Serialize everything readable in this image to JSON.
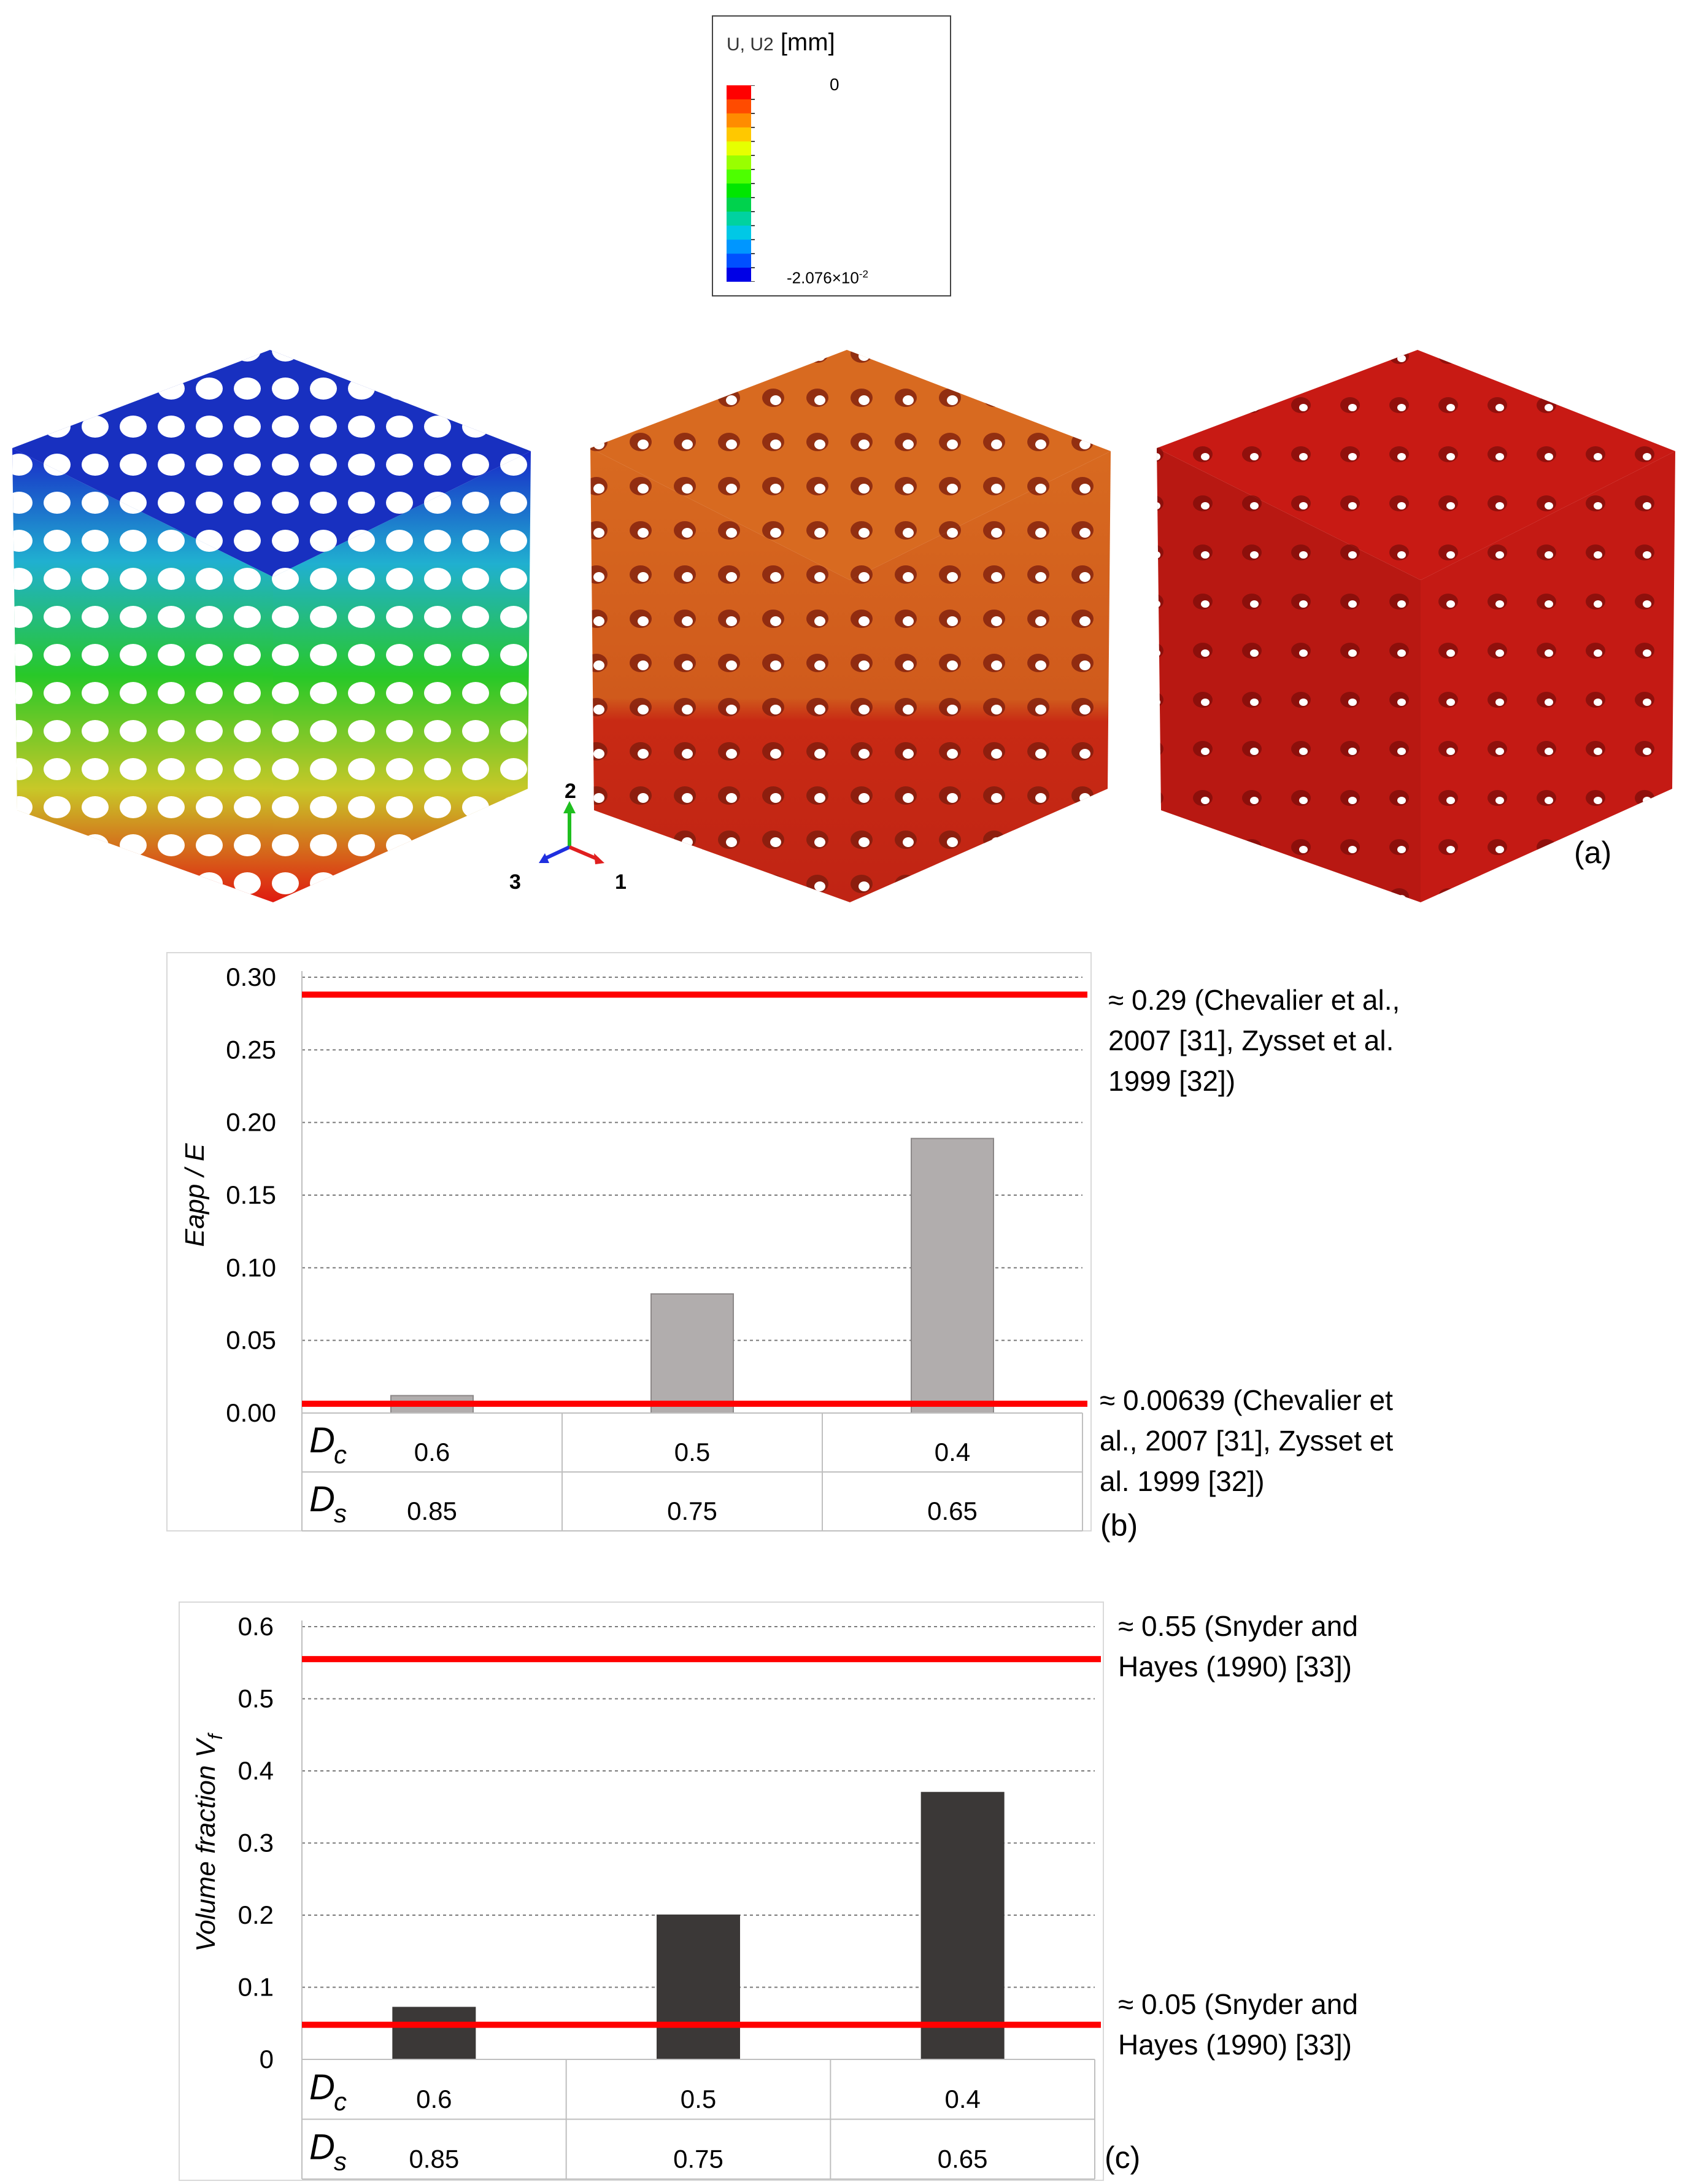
{
  "figure": {
    "panel_labels": {
      "a": "(a)",
      "b": "(b)",
      "c": "(c)"
    }
  },
  "legend": {
    "title_small": "U, U2",
    "title_unit": "[mm]",
    "max_label": "0",
    "min_label_base": "-2.076×10",
    "min_label_exp": "-2",
    "colors": [
      "#ff0000",
      "#ff4b00",
      "#ff8c00",
      "#ffc800",
      "#e6ff00",
      "#99ff00",
      "#4dff00",
      "#00e600",
      "#00d24d",
      "#00d2a0",
      "#00c8e6",
      "#0096ff",
      "#0050ff",
      "#0000e6"
    ]
  },
  "axis_triad": {
    "labels": [
      "2",
      "3",
      "1"
    ],
    "colors": {
      "2": "#1fbf1f",
      "3": "#1f2fdf",
      "1": "#e01f1f"
    }
  },
  "cubes": [
    {
      "name": "displacement-contour-cube",
      "colors": [
        "#1020c8",
        "#10c0d0",
        "#20c020",
        "#c0c020",
        "#e02010"
      ]
    },
    {
      "name": "compressed-mesh-cube",
      "colors": [
        "#d86a20",
        "#c82a14"
      ]
    },
    {
      "name": "solid-mesh-cube",
      "colors": [
        "#c81a14",
        "#b01410"
      ]
    }
  ],
  "chart_data": [
    {
      "type": "bar",
      "panel": "b",
      "categories": [
        "0.6",
        "0.5",
        "0.4"
      ],
      "values": [
        0.012,
        0.082,
        0.189
      ],
      "ylabel": "Eapp / E",
      "ylim": [
        0,
        0.3
      ],
      "yticks": [
        "0.00",
        "0.05",
        "0.10",
        "0.15",
        "0.20",
        "0.25",
        "0.30"
      ],
      "grid": true,
      "bar_color": "#b1adad",
      "reference_lines": [
        {
          "value": 0.288,
          "color": "#ff0000",
          "annotation": [
            "≈ 0.29 (Chevalier et al.,",
            "2007 [31], Zysset et al.",
            "1999 [32])"
          ]
        },
        {
          "value": 0.00639,
          "color": "#ff0000",
          "annotation": [
            "≈ 0.00639 (Chevalier et",
            "al., 2007 [31], Zysset et",
            "al. 1999 [32])"
          ]
        }
      ],
      "table": {
        "rows": [
          {
            "symbol": "D",
            "sub": "c",
            "values": [
              "0.6",
              "0.5",
              "0.4"
            ]
          },
          {
            "symbol": "D",
            "sub": "s",
            "values": [
              "0.85",
              "0.75",
              "0.65"
            ]
          }
        ]
      }
    },
    {
      "type": "bar",
      "panel": "c",
      "categories": [
        "0.6",
        "0.5",
        "0.4"
      ],
      "values": [
        0.072,
        0.2,
        0.37
      ],
      "ylabel": "Volume fraction V",
      "ylabel_sub": "f",
      "ylim": [
        0,
        0.6
      ],
      "yticks": [
        "0",
        "0.1",
        "0.2",
        "0.3",
        "0.4",
        "0.5",
        "0.6"
      ],
      "grid": true,
      "bar_color": "#3b3837",
      "reference_lines": [
        {
          "value": 0.555,
          "color": "#ff0000",
          "annotation": [
            "≈ 0.55 (Snyder and",
            "Hayes (1990) [33])"
          ]
        },
        {
          "value": 0.048,
          "color": "#ff0000",
          "annotation": [
            "≈ 0.05 (Snyder and",
            "Hayes (1990) [33])"
          ]
        }
      ],
      "table": {
        "rows": [
          {
            "symbol": "D",
            "sub": "c",
            "values": [
              "0.6",
              "0.5",
              "0.4"
            ]
          },
          {
            "symbol": "D",
            "sub": "s",
            "values": [
              "0.85",
              "0.75",
              "0.65"
            ]
          }
        ]
      }
    }
  ]
}
